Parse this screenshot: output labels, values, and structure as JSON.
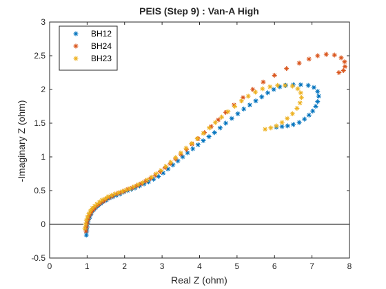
{
  "chart_data": {
    "type": "scatter",
    "title": "PEIS (Step 9) : Van-A High",
    "xlabel": "Real Z (ohm)",
    "ylabel": "-Imaginary Z (ohm)",
    "xlim": [
      0,
      8
    ],
    "ylim": [
      -0.5,
      3
    ],
    "xticks": [
      "0",
      "1",
      "2",
      "3",
      "4",
      "5",
      "6",
      "7",
      "8"
    ],
    "yticks": [
      "-0.5",
      "0",
      "0.5",
      "1",
      "1.5",
      "2",
      "2.5",
      "3"
    ],
    "grid": false,
    "legend_position": "top-left",
    "zero_line": true,
    "marker": "asterisk",
    "series": [
      {
        "name": "BH12",
        "color": "#0072BD",
        "points": [
          [
            0.98,
            -0.16
          ],
          [
            0.99,
            -0.1
          ],
          [
            1.0,
            -0.04
          ],
          [
            1.02,
            0.02
          ],
          [
            1.04,
            0.07
          ],
          [
            1.07,
            0.11
          ],
          [
            1.1,
            0.15
          ],
          [
            1.14,
            0.19
          ],
          [
            1.19,
            0.22
          ],
          [
            1.24,
            0.25
          ],
          [
            1.3,
            0.28
          ],
          [
            1.37,
            0.31
          ],
          [
            1.44,
            0.34
          ],
          [
            1.52,
            0.36
          ],
          [
            1.6,
            0.39
          ],
          [
            1.69,
            0.41
          ],
          [
            1.78,
            0.43
          ],
          [
            1.88,
            0.45
          ],
          [
            1.98,
            0.48
          ],
          [
            2.08,
            0.5
          ],
          [
            2.18,
            0.52
          ],
          [
            2.28,
            0.54
          ],
          [
            2.4,
            0.57
          ],
          [
            2.52,
            0.6
          ],
          [
            2.64,
            0.63
          ],
          [
            2.77,
            0.67
          ],
          [
            2.9,
            0.71
          ],
          [
            3.03,
            0.76
          ],
          [
            3.16,
            0.82
          ],
          [
            3.29,
            0.88
          ],
          [
            3.42,
            0.94
          ],
          [
            3.55,
            1.0
          ],
          [
            3.68,
            1.06
          ],
          [
            3.82,
            1.12
          ],
          [
            3.96,
            1.18
          ],
          [
            4.1,
            1.24
          ],
          [
            4.25,
            1.3
          ],
          [
            4.4,
            1.36
          ],
          [
            4.55,
            1.43
          ],
          [
            4.7,
            1.5
          ],
          [
            4.86,
            1.57
          ],
          [
            5.02,
            1.64
          ],
          [
            5.18,
            1.71
          ],
          [
            5.34,
            1.77
          ],
          [
            5.5,
            1.83
          ],
          [
            5.66,
            1.89
          ],
          [
            5.82,
            1.95
          ],
          [
            5.98,
            2.0
          ],
          [
            6.14,
            2.04
          ],
          [
            6.3,
            2.06
          ],
          [
            6.5,
            2.07
          ],
          [
            6.7,
            2.07
          ],
          [
            6.9,
            2.06
          ],
          [
            7.05,
            2.03
          ],
          [
            7.15,
            1.97
          ],
          [
            7.18,
            1.9
          ],
          [
            7.15,
            1.82
          ],
          [
            7.1,
            1.75
          ],
          [
            7.02,
            1.68
          ],
          [
            6.92,
            1.62
          ],
          [
            6.8,
            1.56
          ],
          [
            6.66,
            1.51
          ],
          [
            6.5,
            1.48
          ],
          [
            6.35,
            1.46
          ],
          [
            6.2,
            1.45
          ],
          [
            6.05,
            1.44
          ]
        ]
      },
      {
        "name": "BH24",
        "color": "#D95319",
        "points": [
          [
            0.97,
            -0.1
          ],
          [
            0.98,
            -0.04
          ],
          [
            1.0,
            0.02
          ],
          [
            1.03,
            0.08
          ],
          [
            1.06,
            0.13
          ],
          [
            1.1,
            0.17
          ],
          [
            1.15,
            0.21
          ],
          [
            1.2,
            0.24
          ],
          [
            1.27,
            0.28
          ],
          [
            1.34,
            0.31
          ],
          [
            1.42,
            0.34
          ],
          [
            1.5,
            0.37
          ],
          [
            1.59,
            0.4
          ],
          [
            1.68,
            0.42
          ],
          [
            1.78,
            0.45
          ],
          [
            1.88,
            0.47
          ],
          [
            1.98,
            0.49
          ],
          [
            2.09,
            0.52
          ],
          [
            2.2,
            0.54
          ],
          [
            2.32,
            0.57
          ],
          [
            2.44,
            0.6
          ],
          [
            2.56,
            0.64
          ],
          [
            2.69,
            0.68
          ],
          [
            2.82,
            0.73
          ],
          [
            2.95,
            0.78
          ],
          [
            3.08,
            0.84
          ],
          [
            3.22,
            0.9
          ],
          [
            3.36,
            0.97
          ],
          [
            3.5,
            1.04
          ],
          [
            3.65,
            1.11
          ],
          [
            3.8,
            1.19
          ],
          [
            3.96,
            1.27
          ],
          [
            4.13,
            1.36
          ],
          [
            4.31,
            1.45
          ],
          [
            4.5,
            1.55
          ],
          [
            4.7,
            1.66
          ],
          [
            4.92,
            1.77
          ],
          [
            5.16,
            1.88
          ],
          [
            5.42,
            2.0
          ],
          [
            5.7,
            2.11
          ],
          [
            6.0,
            2.21
          ],
          [
            6.32,
            2.31
          ],
          [
            6.66,
            2.39
          ],
          [
            6.92,
            2.45
          ],
          [
            7.15,
            2.5
          ],
          [
            7.38,
            2.52
          ],
          [
            7.6,
            2.51
          ],
          [
            7.78,
            2.47
          ],
          [
            7.87,
            2.41
          ],
          [
            7.88,
            2.34
          ],
          [
            7.84,
            2.28
          ],
          [
            7.72,
            2.25
          ]
        ]
      },
      {
        "name": "BH23",
        "color": "#EDB120",
        "points": [
          [
            0.94,
            -0.06
          ],
          [
            0.96,
            0.0
          ],
          [
            0.98,
            0.06
          ],
          [
            1.01,
            0.11
          ],
          [
            1.05,
            0.16
          ],
          [
            1.09,
            0.2
          ],
          [
            1.14,
            0.24
          ],
          [
            1.2,
            0.27
          ],
          [
            1.26,
            0.3
          ],
          [
            1.33,
            0.33
          ],
          [
            1.4,
            0.36
          ],
          [
            1.48,
            0.38
          ],
          [
            1.56,
            0.41
          ],
          [
            1.65,
            0.43
          ],
          [
            1.74,
            0.45
          ],
          [
            1.84,
            0.47
          ],
          [
            1.94,
            0.49
          ],
          [
            2.04,
            0.51
          ],
          [
            2.14,
            0.53
          ],
          [
            2.25,
            0.56
          ],
          [
            2.36,
            0.59
          ],
          [
            2.48,
            0.62
          ],
          [
            2.6,
            0.66
          ],
          [
            2.72,
            0.7
          ],
          [
            2.84,
            0.75
          ],
          [
            2.97,
            0.8
          ],
          [
            3.1,
            0.86
          ],
          [
            3.23,
            0.92
          ],
          [
            3.36,
            0.99
          ],
          [
            3.5,
            1.06
          ],
          [
            3.64,
            1.13
          ],
          [
            3.79,
            1.2
          ],
          [
            3.94,
            1.27
          ],
          [
            4.1,
            1.35
          ],
          [
            4.26,
            1.43
          ],
          [
            4.42,
            1.51
          ],
          [
            4.59,
            1.59
          ],
          [
            4.76,
            1.67
          ],
          [
            4.94,
            1.75
          ],
          [
            5.12,
            1.83
          ],
          [
            5.3,
            1.9
          ],
          [
            5.49,
            1.96
          ],
          [
            5.68,
            2.01
          ],
          [
            5.88,
            2.04
          ],
          [
            6.08,
            2.06
          ],
          [
            6.28,
            2.06
          ],
          [
            6.48,
            2.05
          ],
          [
            6.62,
            2.01
          ],
          [
            6.7,
            1.95
          ],
          [
            6.72,
            1.88
          ],
          [
            6.68,
            1.8
          ],
          [
            6.6,
            1.72
          ],
          [
            6.48,
            1.64
          ],
          [
            6.34,
            1.57
          ],
          [
            6.2,
            1.51
          ],
          [
            6.05,
            1.46
          ],
          [
            5.9,
            1.43
          ],
          [
            5.75,
            1.41
          ]
        ]
      }
    ]
  }
}
